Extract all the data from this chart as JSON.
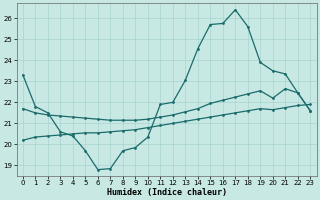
{
  "xlabel": "Humidex (Indice chaleur)",
  "bg_color": "#c8e8e4",
  "grid_color": "#a8d4d0",
  "line_color": "#1a6b6b",
  "x_all": [
    0,
    1,
    2,
    3,
    4,
    5,
    6,
    7,
    8,
    9,
    10,
    11,
    12,
    13,
    14,
    15,
    16,
    17,
    18,
    19,
    20,
    21,
    22,
    23
  ],
  "curve_main": [
    23.3,
    21.8,
    21.5,
    20.6,
    20.4,
    19.7,
    18.8,
    18.85,
    19.7,
    19.85,
    20.35,
    21.9,
    22.0,
    23.05,
    24.55,
    25.7,
    25.75,
    26.4,
    25.6,
    23.9,
    23.5,
    23.35,
    22.45,
    21.6
  ],
  "curve_upper": [
    21.7,
    21.5,
    21.4,
    21.35,
    21.3,
    21.25,
    21.2,
    21.15,
    21.15,
    21.15,
    21.2,
    21.3,
    21.4,
    21.55,
    21.7,
    21.95,
    22.1,
    22.25,
    22.4,
    22.55,
    22.2,
    22.65,
    22.45,
    21.6
  ],
  "curve_lower": [
    20.2,
    20.35,
    20.4,
    20.45,
    20.5,
    20.55,
    20.55,
    20.6,
    20.65,
    20.7,
    20.8,
    20.9,
    21.0,
    21.1,
    21.2,
    21.3,
    21.4,
    21.5,
    21.6,
    21.7,
    21.65,
    21.75,
    21.85,
    21.9
  ],
  "ylim": [
    18.5,
    26.7
  ],
  "yticks": [
    19,
    20,
    21,
    22,
    23,
    24,
    25,
    26
  ],
  "xticks": [
    0,
    1,
    2,
    3,
    4,
    5,
    6,
    7,
    8,
    9,
    10,
    11,
    12,
    13,
    14,
    15,
    16,
    17,
    18,
    19,
    20,
    21,
    22,
    23
  ],
  "figsize": [
    3.2,
    2.0
  ],
  "dpi": 100
}
